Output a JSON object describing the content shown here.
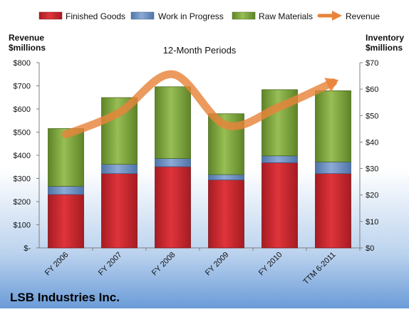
{
  "chart_data": {
    "type": "bar",
    "subtitle": "12-Month Periods",
    "company": "LSB Industries Inc.",
    "left_axis": {
      "label_line1": "Revenue",
      "label_line2": "$millions",
      "range": [
        0,
        800
      ],
      "ticks": [
        0,
        100,
        200,
        300,
        400,
        500,
        600,
        700,
        800
      ],
      "tick_labels": [
        "$-",
        "$100",
        "$200",
        "$300",
        "$400",
        "$500",
        "$600",
        "$700",
        "$800"
      ]
    },
    "right_axis": {
      "label_line1": "Inventory",
      "label_line2": "$millions",
      "range": [
        0,
        70
      ],
      "ticks": [
        0,
        10,
        20,
        30,
        40,
        50,
        60,
        70
      ],
      "tick_labels": [
        "$0",
        "$10",
        "$20",
        "$30",
        "$40",
        "$50",
        "$60",
        "$70"
      ]
    },
    "categories": [
      "FY 2006",
      "FY 2007",
      "FY 2008",
      "FY 2009",
      "FY 2010",
      "TTM 6-2011"
    ],
    "stacked_series": [
      {
        "name": "Finished Goods",
        "axis": "right",
        "color": "#cc2229",
        "values": [
          20.2,
          28.1,
          30.7,
          25.7,
          32.2,
          28.1
        ]
      },
      {
        "name": "Work in Progress",
        "axis": "right",
        "color": "#6f93c7",
        "values": [
          3.1,
          3.5,
          3.1,
          2.0,
          2.6,
          4.4
        ]
      },
      {
        "name": "Raw Materials",
        "axis": "right",
        "color": "#7ea33c",
        "values": [
          21.8,
          25.2,
          27.1,
          23.0,
          25.0,
          26.9
        ]
      }
    ],
    "line_series": {
      "name": "Revenue",
      "axis": "left",
      "color": "#e8843a",
      "values": [
        490,
        585,
        750,
        530,
        610,
        715
      ]
    },
    "legend_position": "top",
    "grid": false
  }
}
